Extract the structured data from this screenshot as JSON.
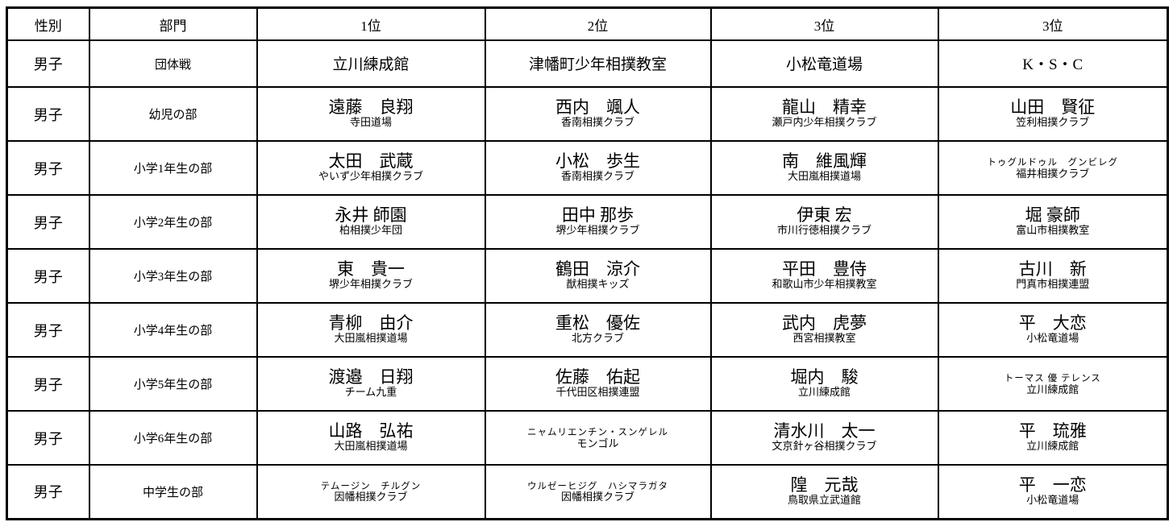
{
  "colors": {
    "border": "#000000",
    "text": "#000000",
    "background": "#ffffff"
  },
  "table": {
    "header": [
      "性別",
      "部門",
      "1位",
      "2位",
      "3位",
      "3位"
    ],
    "rows": [
      {
        "gender": "男子",
        "division": "団体戦",
        "type": "team",
        "places": [
          {
            "name": "立川練成館"
          },
          {
            "name": "津幡町少年相撲教室"
          },
          {
            "name": "小松竜道場"
          },
          {
            "name": "K・S・C"
          }
        ]
      },
      {
        "gender": "男子",
        "division": "幼児の部",
        "places": [
          {
            "name": "遠藤　良翔",
            "club": "寺田道場"
          },
          {
            "name": "西内　颯人",
            "club": "香南相撲クラブ"
          },
          {
            "name": "龍山　精幸",
            "club": "瀬戸内少年相撲クラブ"
          },
          {
            "name": "山田　賢征",
            "club": "笠利相撲クラブ"
          }
        ]
      },
      {
        "gender": "男子",
        "division": "小学1年生の部",
        "places": [
          {
            "name": "太田　武蔵",
            "club": "やいず少年相撲クラブ"
          },
          {
            "name": "小松　歩生",
            "club": "香南相撲クラブ"
          },
          {
            "name": "南　維風輝",
            "club": "大田嵐相撲道場"
          },
          {
            "name": "トゥグルドゥル　グンビレグ",
            "club": "福井相撲クラブ",
            "small": true
          }
        ]
      },
      {
        "gender": "男子",
        "division": "小学2年生の部",
        "places": [
          {
            "name": "永井 師園",
            "club": "柏相撲少年団"
          },
          {
            "name": "田中 那歩",
            "club": "堺少年相撲クラブ"
          },
          {
            "name": "伊東 宏",
            "club": "市川行徳相撲クラブ"
          },
          {
            "name": "堀 豪師",
            "club": "富山市相撲教室"
          }
        ]
      },
      {
        "gender": "男子",
        "division": "小学3年生の部",
        "places": [
          {
            "name": "東　貴一",
            "club": "堺少年相撲クラブ"
          },
          {
            "name": "鶴田　涼介",
            "club": "猷相撲キッズ"
          },
          {
            "name": "平田　豊侍",
            "club": "和歌山市少年相撲教室"
          },
          {
            "name": "古川　新",
            "club": "門真市相撲連盟"
          }
        ]
      },
      {
        "gender": "男子",
        "division": "小学4年生の部",
        "places": [
          {
            "name": "青柳　由介",
            "club": "大田嵐相撲道場"
          },
          {
            "name": "重松　優佐",
            "club": "北方クラブ"
          },
          {
            "name": "武内　虎夢",
            "club": "西宮相撲教室"
          },
          {
            "name": "平　大恋",
            "club": "小松竜道場"
          }
        ]
      },
      {
        "gender": "男子",
        "division": "小学5年生の部",
        "places": [
          {
            "name": "渡邉　日翔",
            "club": "チーム九重"
          },
          {
            "name": "佐藤　佑起",
            "club": "千代田区相撲連盟"
          },
          {
            "name": "堀内　駿",
            "club": "立川練成館"
          },
          {
            "name": "トーマス 優 テレンス",
            "club": "立川練成館",
            "small": true
          }
        ]
      },
      {
        "gender": "男子",
        "division": "小学6年生の部",
        "places": [
          {
            "name": "山路　弘祐",
            "club": "大田嵐相撲道場"
          },
          {
            "name": "ニャムリエンチン・スンゲレル",
            "club": "モンゴル",
            "small": true
          },
          {
            "name": "清水川　太一",
            "club": "文京針ヶ谷相撲クラブ"
          },
          {
            "name": "平　琉雅",
            "club": "立川練成館"
          }
        ]
      },
      {
        "gender": "男子",
        "division": "中学生の部",
        "places": [
          {
            "name": "テムージン　チルグン",
            "club": "因幡相撲クラブ",
            "small": true
          },
          {
            "name": "ウルゼーヒジグ　ハシマラガタ",
            "club": "因幡相撲クラブ",
            "small": true
          },
          {
            "name": "隍　元哉",
            "club": "鳥取県立武道館"
          },
          {
            "name": "平　一恋",
            "club": "小松竜道場"
          }
        ]
      }
    ]
  }
}
